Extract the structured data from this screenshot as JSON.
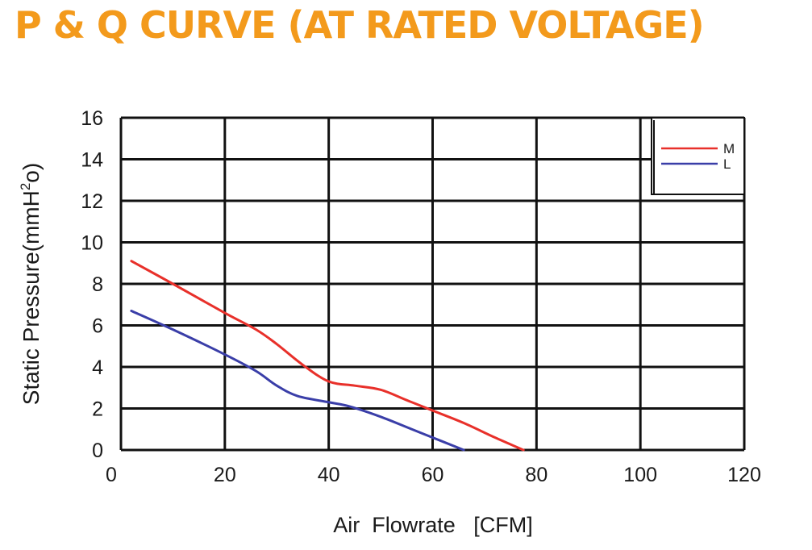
{
  "chart_data": {
    "type": "line",
    "title": "P & Q CURVE (AT RATED VOLTAGE)",
    "xlabel": "Air  Flowrate   [CFM]",
    "ylabel": "Static Pressure(mmH",
    "ylabel_sup": "2",
    "ylabel_tail": "o)",
    "xlim": [
      0,
      120
    ],
    "ylim": [
      0,
      16
    ],
    "x_ticks": [
      "0",
      "20",
      "40",
      "60",
      "80",
      "100",
      "120"
    ],
    "y_ticks": [
      "0",
      "2",
      "4",
      "6",
      "8",
      "10",
      "12",
      "14",
      "16"
    ],
    "grid": true,
    "legend_position": "top-right",
    "series": [
      {
        "name": "M",
        "color": "#e8302a",
        "points": [
          [
            2,
            9.1
          ],
          [
            10,
            8.0
          ],
          [
            20,
            6.6
          ],
          [
            26,
            5.8
          ],
          [
            30,
            5.1
          ],
          [
            35,
            4.1
          ],
          [
            40,
            3.3
          ],
          [
            45,
            3.1
          ],
          [
            50,
            2.9
          ],
          [
            55,
            2.4
          ],
          [
            60,
            1.9
          ],
          [
            66,
            1.3
          ],
          [
            72,
            0.6
          ],
          [
            77.5,
            0
          ]
        ]
      },
      {
        "name": "L",
        "color": "#3a3ea8",
        "points": [
          [
            2,
            6.7
          ],
          [
            10,
            5.8
          ],
          [
            20,
            4.6
          ],
          [
            26,
            3.8
          ],
          [
            30,
            3.1
          ],
          [
            34,
            2.6
          ],
          [
            40,
            2.3
          ],
          [
            44,
            2.1
          ],
          [
            50,
            1.6
          ],
          [
            56,
            1.0
          ],
          [
            62,
            0.4
          ],
          [
            66,
            0
          ]
        ]
      }
    ]
  }
}
